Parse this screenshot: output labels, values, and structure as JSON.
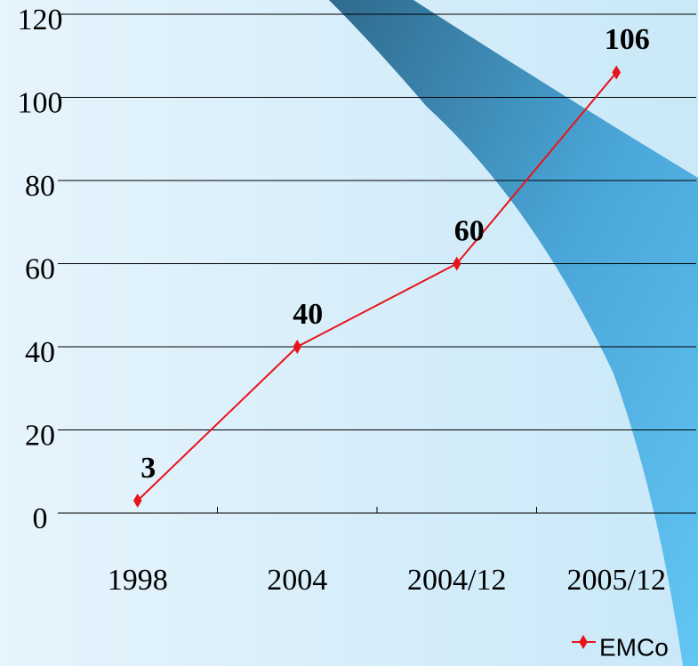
{
  "chart_data": {
    "type": "line",
    "categories": [
      "1998",
      "2004",
      "2004/12",
      "2005/12"
    ],
    "series": [
      {
        "name": "EMCo",
        "color": "#e8141c",
        "values": [
          3,
          40,
          60,
          106
        ]
      }
    ],
    "ylim": [
      0,
      120
    ],
    "yticks": [
      0,
      20,
      40,
      60,
      80,
      100,
      120
    ],
    "grid": true,
    "legend": "bottom-right"
  }
}
